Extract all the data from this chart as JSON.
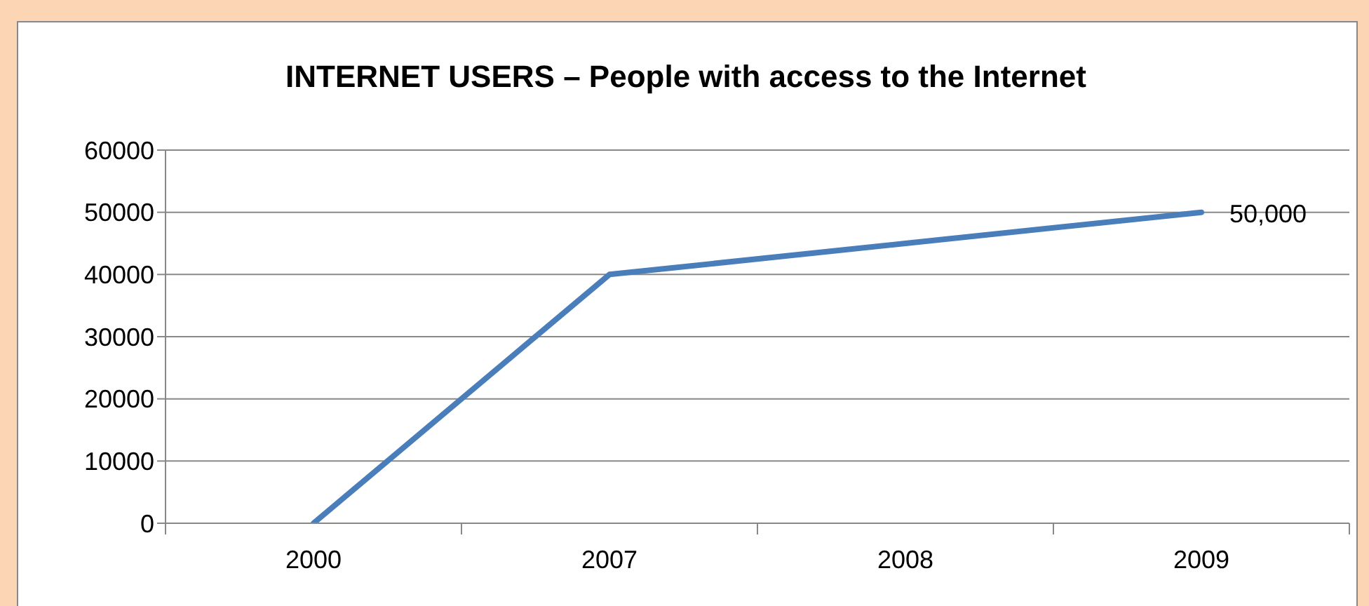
{
  "chart_data": {
    "type": "line",
    "title": "INTERNET USERS – People with access to the Internet",
    "categories": [
      "2000",
      "2007",
      "2008",
      "2009"
    ],
    "series": [
      {
        "color": "#4a7ebb",
        "values": [
          0,
          40000,
          45000,
          50000
        ],
        "value_labels": [
          null,
          null,
          null,
          "50,000"
        ]
      }
    ],
    "ylim": [
      0,
      60000
    ],
    "yticks": [
      0,
      10000,
      20000,
      30000,
      40000,
      50000,
      60000
    ],
    "grid": "y",
    "legend": false,
    "marker": "none",
    "line_style": "solid"
  }
}
